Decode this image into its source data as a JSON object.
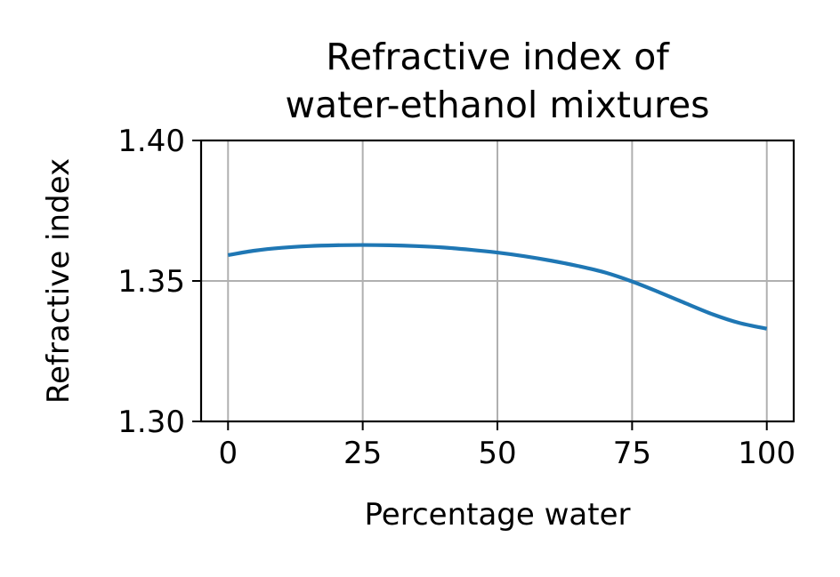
{
  "chart_data": {
    "type": "line",
    "title_lines": [
      "Refractive index of",
      "water-ethanol mixtures"
    ],
    "xlabel": "Percentage water",
    "ylabel": "Refractive index",
    "xlim": [
      -5,
      105
    ],
    "ylim": [
      1.3,
      1.4
    ],
    "x_ticks": [
      0,
      25,
      50,
      75,
      100
    ],
    "x_tick_labels": [
      "0",
      "25",
      "50",
      "75",
      "100"
    ],
    "y_ticks": [
      1.3,
      1.35,
      1.4
    ],
    "y_tick_labels": [
      "1.30",
      "1.35",
      "1.40"
    ],
    "grid": true,
    "series": [
      {
        "color": "#1f77b4",
        "x": [
          0,
          5,
          10,
          15,
          20,
          25,
          30,
          35,
          40,
          45,
          50,
          55,
          60,
          65,
          70,
          75,
          80,
          85,
          90,
          95,
          100
        ],
        "y": [
          1.3592,
          1.3608,
          1.3618,
          1.3624,
          1.3627,
          1.3628,
          1.3627,
          1.3624,
          1.3619,
          1.3611,
          1.3601,
          1.3588,
          1.3572,
          1.3553,
          1.353,
          1.3498,
          1.346,
          1.342,
          1.3381,
          1.335,
          1.333
        ]
      }
    ]
  }
}
